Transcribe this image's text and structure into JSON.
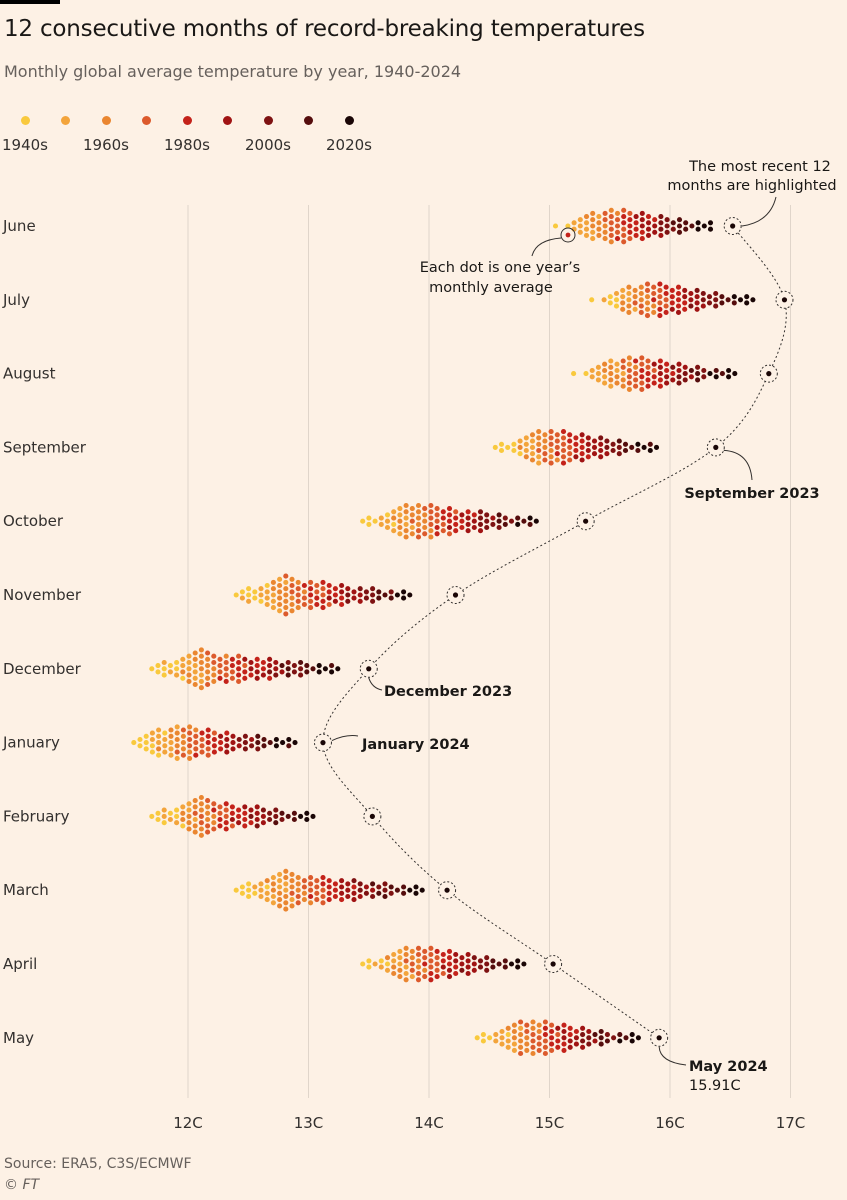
{
  "header": {
    "title": "12 consecutive months of record-breaking temperatures",
    "subtitle": "Monthly global average temperature by year, 1940-2024"
  },
  "legend": {
    "items": [
      {
        "label": "1940s",
        "color": "#f9c93d"
      },
      {
        "label": "",
        "color": "#f3a43b"
      },
      {
        "label": "1960s",
        "color": "#ea8630"
      },
      {
        "label": "",
        "color": "#dc5a2c"
      },
      {
        "label": "1980s",
        "color": "#c4221a"
      },
      {
        "label": "",
        "color": "#a01313"
      },
      {
        "label": "2000s",
        "color": "#7e1212"
      },
      {
        "label": "",
        "color": "#550d0d"
      },
      {
        "label": "2020s",
        "color": "#1a0606"
      }
    ]
  },
  "footer": {
    "source": "Source: ERA5, C3S/ECMWF",
    "copyright": "© FT"
  },
  "chart_data": {
    "type": "scatter",
    "subtype": "beeswarm",
    "title": "12 consecutive months of record-breaking temperatures",
    "subtitle": "Monthly global average temperature by year, 1940-2024",
    "x_ticks": [
      "12C",
      "13C",
      "14C",
      "15C",
      "16C",
      "17C"
    ],
    "xlim": [
      11.5,
      17.2
    ],
    "unit": "C",
    "grid": true,
    "months": [
      {
        "label": "June",
        "min": 15.05,
        "max": 16.35,
        "peak": 15.55,
        "highlight": 16.52
      },
      {
        "label": "July",
        "min": 15.35,
        "max": 16.7,
        "peak": 15.85,
        "highlight": 16.95
      },
      {
        "label": "August",
        "min": 15.2,
        "max": 16.55,
        "peak": 15.7,
        "highlight": 16.82
      },
      {
        "label": "September",
        "min": 14.55,
        "max": 15.9,
        "peak": 15.0,
        "highlight": 16.38
      },
      {
        "label": "October",
        "min": 13.45,
        "max": 14.95,
        "peak": 13.9,
        "highlight": 15.3
      },
      {
        "label": "November",
        "min": 12.4,
        "max": 13.9,
        "peak": 12.8,
        "highlight": 14.22
      },
      {
        "label": "December",
        "min": 11.7,
        "max": 13.25,
        "peak": 12.1,
        "highlight": 13.5
      },
      {
        "label": "January",
        "min": 11.55,
        "max": 12.9,
        "peak": 11.9,
        "highlight": 13.12
      },
      {
        "label": "February",
        "min": 11.7,
        "max": 13.05,
        "peak": 12.1,
        "highlight": 13.53
      },
      {
        "label": "March",
        "min": 12.4,
        "max": 14.0,
        "peak": 12.8,
        "highlight": 14.15
      },
      {
        "label": "April",
        "min": 13.45,
        "max": 14.8,
        "peak": 13.9,
        "highlight": 15.03
      },
      {
        "label": "May",
        "min": 14.4,
        "max": 15.75,
        "peak": 14.85,
        "highlight": 15.91
      }
    ],
    "annotations": {
      "recent": "The most recent 12",
      "recent2": "months are highlighted",
      "dot": "Each dot is one year’s",
      "dot2": "monthly average",
      "sep": "September 2023",
      "dec": "December 2023",
      "jan": "January 2024",
      "may": "May 2024",
      "may_value": "15.91C"
    }
  }
}
